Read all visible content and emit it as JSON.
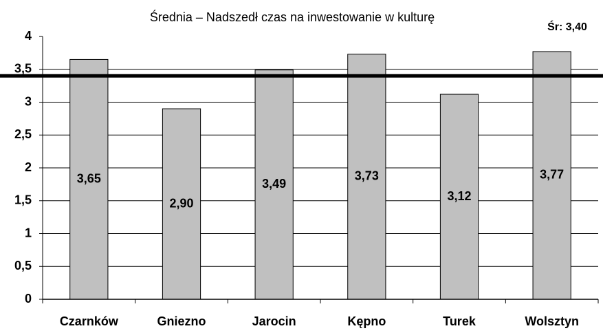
{
  "chart_data": {
    "type": "bar",
    "title": "Średnia – Nadszedł czas na inwestowanie w kulturę",
    "categories": [
      "Czarnków",
      "Gniezno",
      "Jarocin",
      "Kępno",
      "Turek",
      "Wolsztyn"
    ],
    "values": [
      3.65,
      2.9,
      3.49,
      3.73,
      3.12,
      3.77
    ],
    "value_labels": [
      "3,65",
      "2,90",
      "3,49",
      "3,73",
      "3,12",
      "3,77"
    ],
    "color": "#c0c0c0",
    "ylim": [
      0,
      4
    ],
    "yticks": [
      0,
      {
        "value": 0.5,
        "label": "0,5"
      },
      1,
      {
        "value": 1.5,
        "label": "1,5"
      },
      2,
      {
        "value": 2.5,
        "label": "2,5"
      },
      3,
      {
        "value": 3.5,
        "label": "3,5"
      },
      4
    ],
    "grid": true,
    "reference_line": {
      "value": 3.4,
      "label": "Śr: 3,40"
    }
  }
}
